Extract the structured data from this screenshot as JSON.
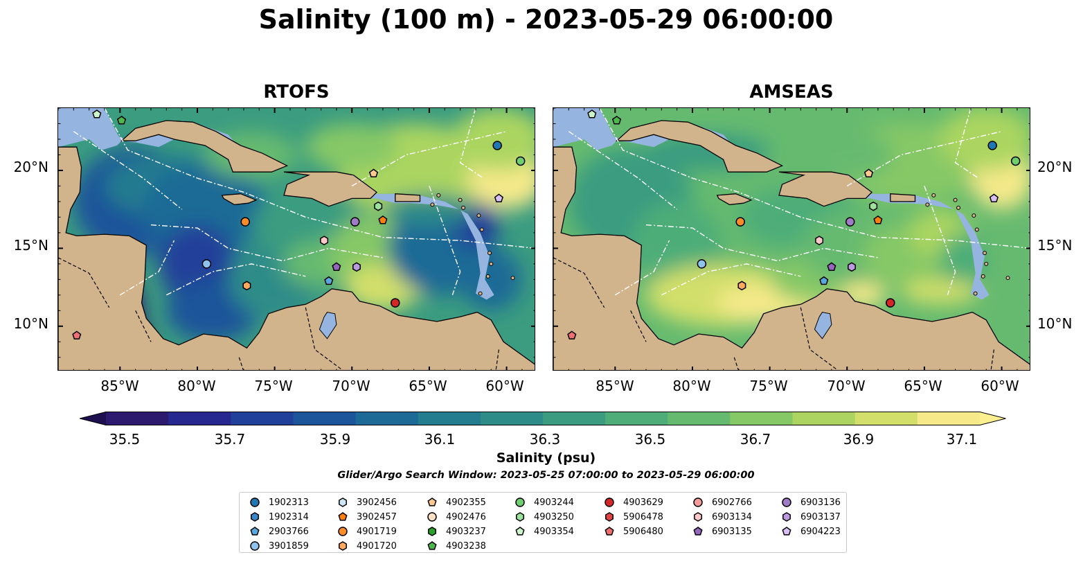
{
  "title": "Salinity (100 m) - 2023-05-29 06:00:00",
  "panels": [
    {
      "title": "RTOFS",
      "model": "rtofs"
    },
    {
      "title": "AMSEAS",
      "model": "amseas"
    }
  ],
  "lon_labels": [
    "85°W",
    "80°W",
    "75°W",
    "70°W",
    "65°W",
    "60°W"
  ],
  "lat_labels": [
    "20°N",
    "15°N",
    "10°N"
  ],
  "colorbar": {
    "label": "Salinity (psu)",
    "ticks": [
      "35.5",
      "35.7",
      "35.9",
      "36.1",
      "36.3",
      "36.5",
      "36.7",
      "36.9",
      "37.1"
    ],
    "colors": [
      "#2b1a6e",
      "#27288f",
      "#20409a",
      "#1d559a",
      "#1d6a96",
      "#247c8f",
      "#2d8c88",
      "#3b9c80",
      "#4ead78",
      "#66ba6f",
      "#86c866",
      "#abd560",
      "#d2df6a",
      "#f5e98a"
    ],
    "extend": "both"
  },
  "search_window": "Glider/Argo Search Window: 2023-05-25 07:00:00 to 2023-05-29 06:00:00",
  "legend": [
    {
      "id": "1902313",
      "marker": "circle",
      "color": "#1f77b4"
    },
    {
      "id": "1902314",
      "marker": "hexagon",
      "color": "#3a86c8"
    },
    {
      "id": "2903766",
      "marker": "pentagon",
      "color": "#5aa7e0"
    },
    {
      "id": "3901859",
      "marker": "circle",
      "color": "#8fc3ee"
    },
    {
      "id": "3902456",
      "marker": "hexagon",
      "color": "#cde6f7"
    },
    {
      "id": "3902457",
      "marker": "pentagon",
      "color": "#ff7f0e"
    },
    {
      "id": "4901719",
      "marker": "circle",
      "color": "#ff8c2a"
    },
    {
      "id": "4901720",
      "marker": "hexagon",
      "color": "#ffaa5e"
    },
    {
      "id": "4902355",
      "marker": "pentagon",
      "color": "#ffc890"
    },
    {
      "id": "4902476",
      "marker": "circle",
      "color": "#ffe0c0"
    },
    {
      "id": "4903237",
      "marker": "hexagon",
      "color": "#2ca02c"
    },
    {
      "id": "4903238",
      "marker": "pentagon",
      "color": "#4cb84c"
    },
    {
      "id": "4903244",
      "marker": "circle",
      "color": "#6fcf6f"
    },
    {
      "id": "4903250",
      "marker": "hexagon",
      "color": "#9be39b"
    },
    {
      "id": "4903354",
      "marker": "pentagon",
      "color": "#ccf5cc"
    },
    {
      "id": "4903629",
      "marker": "circle",
      "color": "#d62728"
    },
    {
      "id": "5906478",
      "marker": "hexagon",
      "color": "#e04545"
    },
    {
      "id": "5906480",
      "marker": "pentagon",
      "color": "#ee7070"
    },
    {
      "id": "6902766",
      "marker": "circle",
      "color": "#f49a9a"
    },
    {
      "id": "6903134",
      "marker": "hexagon",
      "color": "#fcc8c8"
    },
    {
      "id": "6903135",
      "marker": "pentagon",
      "color": "#9467bd"
    },
    {
      "id": "6903136",
      "marker": "circle",
      "color": "#a07cc8"
    },
    {
      "id": "6903137",
      "marker": "hexagon",
      "color": "#bb9be0"
    },
    {
      "id": "6904223",
      "marker": "pentagon",
      "color": "#d8c0f5"
    }
  ],
  "floats": [
    {
      "id": "4903354",
      "lon": -86.5,
      "lat": 23.6
    },
    {
      "id": "4903238",
      "lon": -84.9,
      "lat": 23.2
    },
    {
      "id": "1902313",
      "lon": -60.6,
      "lat": 21.6
    },
    {
      "id": "4903244",
      "lon": -59.1,
      "lat": 20.6
    },
    {
      "id": "4902355",
      "lon": -68.6,
      "lat": 19.8
    },
    {
      "id": "6904223",
      "lon": -60.5,
      "lat": 18.2
    },
    {
      "id": "4903250",
      "lon": -68.3,
      "lat": 17.7
    },
    {
      "id": "4901719",
      "lon": -76.9,
      "lat": 16.7
    },
    {
      "id": "6903136",
      "lon": -69.8,
      "lat": 16.7
    },
    {
      "id": "3902457",
      "lon": -68.0,
      "lat": 16.8
    },
    {
      "id": "6903134",
      "lon": -71.8,
      "lat": 15.5
    },
    {
      "id": "3901859",
      "lon": -79.4,
      "lat": 14.0
    },
    {
      "id": "6903135",
      "lon": -71.0,
      "lat": 13.8
    },
    {
      "id": "6903137",
      "lon": -69.7,
      "lat": 13.8
    },
    {
      "id": "2903766",
      "lon": -71.5,
      "lat": 12.9
    },
    {
      "id": "4901720",
      "lon": -76.8,
      "lat": 12.6
    },
    {
      "id": "4903629",
      "lon": -67.2,
      "lat": 11.5
    },
    {
      "id": "5906480",
      "lon": -87.8,
      "lat": 9.4
    }
  ]
}
